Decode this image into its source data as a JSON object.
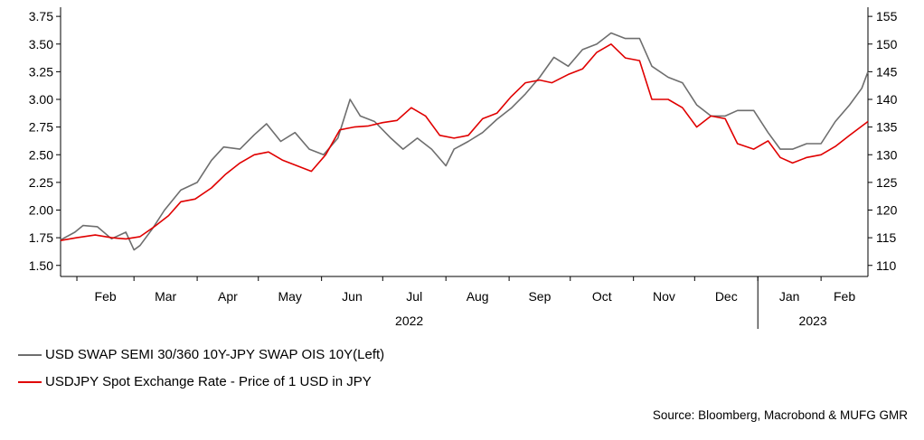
{
  "chart_data": {
    "type": "line",
    "x_range": [
      "2022-01-24",
      "2023-02-24"
    ],
    "month_labels": [
      "Feb",
      "Mar",
      "Apr",
      "May",
      "Jun",
      "Jul",
      "Aug",
      "Sep",
      "Oct",
      "Nov",
      "Dec",
      "Jan",
      "Feb"
    ],
    "year_labels": [
      "2022",
      "2023"
    ],
    "y_left": {
      "min": 1.4,
      "max": 3.8,
      "ticks": [
        "1.50",
        "1.75",
        "2.00",
        "2.25",
        "2.50",
        "2.75",
        "3.00",
        "3.25",
        "3.50",
        "3.75"
      ]
    },
    "y_right": {
      "min": 108,
      "max": 156,
      "ticks": [
        "110",
        "115",
        "120",
        "125",
        "130",
        "135",
        "140",
        "145",
        "150",
        "155"
      ]
    },
    "grid": false,
    "legend_position": "bottom-left",
    "series": [
      {
        "name": "USD SWAP SEMI 30/360 10Y-JPY SWAP OIS 10Y(Left)",
        "axis": "left",
        "color": "#6e6e6e",
        "points": [
          [
            "2022-01-24",
            1.73
          ],
          [
            "2022-01-31",
            1.8
          ],
          [
            "2022-02-04",
            1.86
          ],
          [
            "2022-02-11",
            1.85
          ],
          [
            "2022-02-18",
            1.74
          ],
          [
            "2022-02-25",
            1.8
          ],
          [
            "2022-03-01",
            1.64
          ],
          [
            "2022-03-04",
            1.68
          ],
          [
            "2022-03-10",
            1.83
          ],
          [
            "2022-03-16",
            2.0
          ],
          [
            "2022-03-24",
            2.18
          ],
          [
            "2022-04-01",
            2.25
          ],
          [
            "2022-04-08",
            2.45
          ],
          [
            "2022-04-14",
            2.57
          ],
          [
            "2022-04-22",
            2.55
          ],
          [
            "2022-04-29",
            2.68
          ],
          [
            "2022-05-05",
            2.78
          ],
          [
            "2022-05-12",
            2.62
          ],
          [
            "2022-05-19",
            2.7
          ],
          [
            "2022-05-26",
            2.55
          ],
          [
            "2022-06-02",
            2.5
          ],
          [
            "2022-06-09",
            2.65
          ],
          [
            "2022-06-15",
            3.0
          ],
          [
            "2022-06-20",
            2.85
          ],
          [
            "2022-06-27",
            2.8
          ],
          [
            "2022-07-05",
            2.65
          ],
          [
            "2022-07-11",
            2.55
          ],
          [
            "2022-07-18",
            2.65
          ],
          [
            "2022-07-25",
            2.55
          ],
          [
            "2022-08-01",
            2.4
          ],
          [
            "2022-08-05",
            2.55
          ],
          [
            "2022-08-12",
            2.62
          ],
          [
            "2022-08-19",
            2.7
          ],
          [
            "2022-08-26",
            2.82
          ],
          [
            "2022-09-02",
            2.92
          ],
          [
            "2022-09-09",
            3.05
          ],
          [
            "2022-09-16",
            3.2
          ],
          [
            "2022-09-23",
            3.38
          ],
          [
            "2022-09-30",
            3.3
          ],
          [
            "2022-10-07",
            3.45
          ],
          [
            "2022-10-14",
            3.5
          ],
          [
            "2022-10-21",
            3.6
          ],
          [
            "2022-10-28",
            3.55
          ],
          [
            "2022-11-04",
            3.55
          ],
          [
            "2022-11-10",
            3.3
          ],
          [
            "2022-11-18",
            3.2
          ],
          [
            "2022-11-25",
            3.15
          ],
          [
            "2022-12-02",
            2.95
          ],
          [
            "2022-12-09",
            2.85
          ],
          [
            "2022-12-16",
            2.85
          ],
          [
            "2022-12-22",
            2.9
          ],
          [
            "2022-12-30",
            2.9
          ],
          [
            "2023-01-06",
            2.7
          ],
          [
            "2023-01-12",
            2.55
          ],
          [
            "2023-01-18",
            2.55
          ],
          [
            "2023-01-25",
            2.6
          ],
          [
            "2023-02-01",
            2.6
          ],
          [
            "2023-02-08",
            2.8
          ],
          [
            "2023-02-15",
            2.95
          ],
          [
            "2023-02-21",
            3.1
          ],
          [
            "2023-02-24",
            3.25
          ]
        ]
      },
      {
        "name": "USDJPY Spot Exchange Rate - Price of 1 USD in JPY",
        "axis": "right",
        "color": "#e00000",
        "points": [
          [
            "2022-01-24",
            114.5
          ],
          [
            "2022-02-01",
            115.0
          ],
          [
            "2022-02-10",
            115.5
          ],
          [
            "2022-02-18",
            115.0
          ],
          [
            "2022-02-25",
            114.8
          ],
          [
            "2022-03-04",
            115.2
          ],
          [
            "2022-03-11",
            117.0
          ],
          [
            "2022-03-18",
            119.0
          ],
          [
            "2022-03-24",
            121.5
          ],
          [
            "2022-03-31",
            122.0
          ],
          [
            "2022-04-08",
            124.0
          ],
          [
            "2022-04-15",
            126.5
          ],
          [
            "2022-04-22",
            128.5
          ],
          [
            "2022-04-29",
            130.0
          ],
          [
            "2022-05-06",
            130.5
          ],
          [
            "2022-05-13",
            129.0
          ],
          [
            "2022-05-20",
            128.0
          ],
          [
            "2022-05-27",
            127.0
          ],
          [
            "2022-06-03",
            130.0
          ],
          [
            "2022-06-10",
            134.5
          ],
          [
            "2022-06-17",
            135.0
          ],
          [
            "2022-06-24",
            135.2
          ],
          [
            "2022-07-01",
            135.8
          ],
          [
            "2022-07-08",
            136.2
          ],
          [
            "2022-07-15",
            138.5
          ],
          [
            "2022-07-22",
            137.0
          ],
          [
            "2022-07-29",
            133.5
          ],
          [
            "2022-08-05",
            133.0
          ],
          [
            "2022-08-12",
            133.5
          ],
          [
            "2022-08-19",
            136.5
          ],
          [
            "2022-08-26",
            137.5
          ],
          [
            "2022-09-02",
            140.5
          ],
          [
            "2022-09-09",
            143.0
          ],
          [
            "2022-09-16",
            143.5
          ],
          [
            "2022-09-22",
            143.0
          ],
          [
            "2022-09-30",
            144.5
          ],
          [
            "2022-10-07",
            145.5
          ],
          [
            "2022-10-14",
            148.5
          ],
          [
            "2022-10-21",
            150.0
          ],
          [
            "2022-10-28",
            147.5
          ],
          [
            "2022-11-04",
            147.0
          ],
          [
            "2022-11-10",
            140.0
          ],
          [
            "2022-11-18",
            140.0
          ],
          [
            "2022-11-25",
            138.5
          ],
          [
            "2022-12-02",
            135.0
          ],
          [
            "2022-12-09",
            137.0
          ],
          [
            "2022-12-16",
            136.5
          ],
          [
            "2022-12-22",
            132.0
          ],
          [
            "2022-12-30",
            131.0
          ],
          [
            "2023-01-06",
            132.5
          ],
          [
            "2023-01-12",
            129.5
          ],
          [
            "2023-01-18",
            128.5
          ],
          [
            "2023-01-25",
            129.5
          ],
          [
            "2023-02-01",
            130.0
          ],
          [
            "2023-02-08",
            131.5
          ],
          [
            "2023-02-15",
            133.5
          ],
          [
            "2023-02-24",
            136.0
          ]
        ]
      }
    ]
  },
  "source": "Source: Bloomberg, Macrobond & MUFG GMR"
}
